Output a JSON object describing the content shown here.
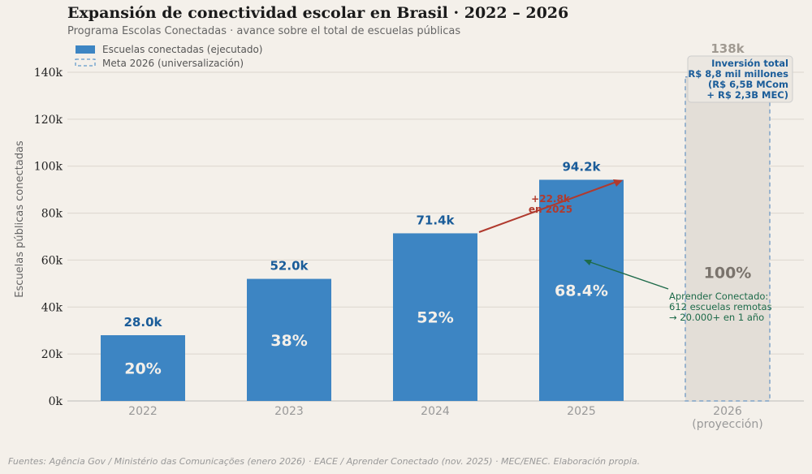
{
  "chart_data": {
    "type": "bar",
    "title": "Expansión de conectividad escolar en Brasil · 2022 – 2026",
    "subtitle": "Programa Escolas Conectadas · avance sobre el total de escuelas públicas",
    "ylabel": "Escuelas públicas conectadas",
    "xlabel": "",
    "ylim": [
      0,
      150000
    ],
    "yticks": [
      "0k",
      "20k",
      "40k",
      "60k",
      "80k",
      "100k",
      "120k",
      "140k"
    ],
    "grid": true,
    "legend_position": "top-left",
    "legend": [
      "Escuelas conectadas (ejecutado)",
      "Meta 2026 (universalización)"
    ],
    "categories": [
      "2022",
      "2023",
      "2024",
      "2025",
      "2026\n(proyección)"
    ],
    "category_labels": [
      [
        "2022"
      ],
      [
        "2023"
      ],
      [
        "2024"
      ],
      [
        "2025"
      ],
      [
        "2026",
        "(proyección)"
      ]
    ],
    "series": [
      {
        "name": "Escuelas conectadas (ejecutado)",
        "values": [
          28000,
          52000,
          71400,
          94200,
          null
        ],
        "value_labels": [
          "28.0k",
          "52.0k",
          "71.4k",
          "94.2k",
          ""
        ],
        "pct_labels": [
          "20%",
          "38%",
          "52%",
          "68.4%",
          ""
        ]
      },
      {
        "name": "Meta 2026 (universalización)",
        "values": [
          null,
          null,
          null,
          null,
          138000
        ],
        "value_labels": [
          "",
          "",
          "",
          "",
          "138k"
        ],
        "pct_labels": [
          "",
          "",
          "",
          "",
          "100%"
        ]
      }
    ],
    "annotations": {
      "growth": [
        "+22.8k",
        "en 2025"
      ],
      "aprender": [
        "Aprender Conectado:",
        "612 escuelas remotas",
        "→ 20.000+ en 1 año"
      ],
      "investment": [
        "Inversión total",
        "R$ 8,8 mil millones",
        "(R$ 6,5B MCom",
        "+ R$ 2,3B MEC)"
      ]
    },
    "colors": {
      "bar": "#3d85c3",
      "goal_fill": "#e3ded7",
      "goal_border": "#7fa3c8",
      "value": "#1a5c99",
      "growth": "#b03a2e",
      "aprender": "#1e6b4a",
      "background": "#f4f0ea"
    }
  },
  "footer": {
    "source": "Fuentes: Agência Gov / Ministério das Comunicações (enero 2026) · EACE / Aprender Conectado (nov. 2025) · MEC/ENEC. Elaboración propia."
  }
}
